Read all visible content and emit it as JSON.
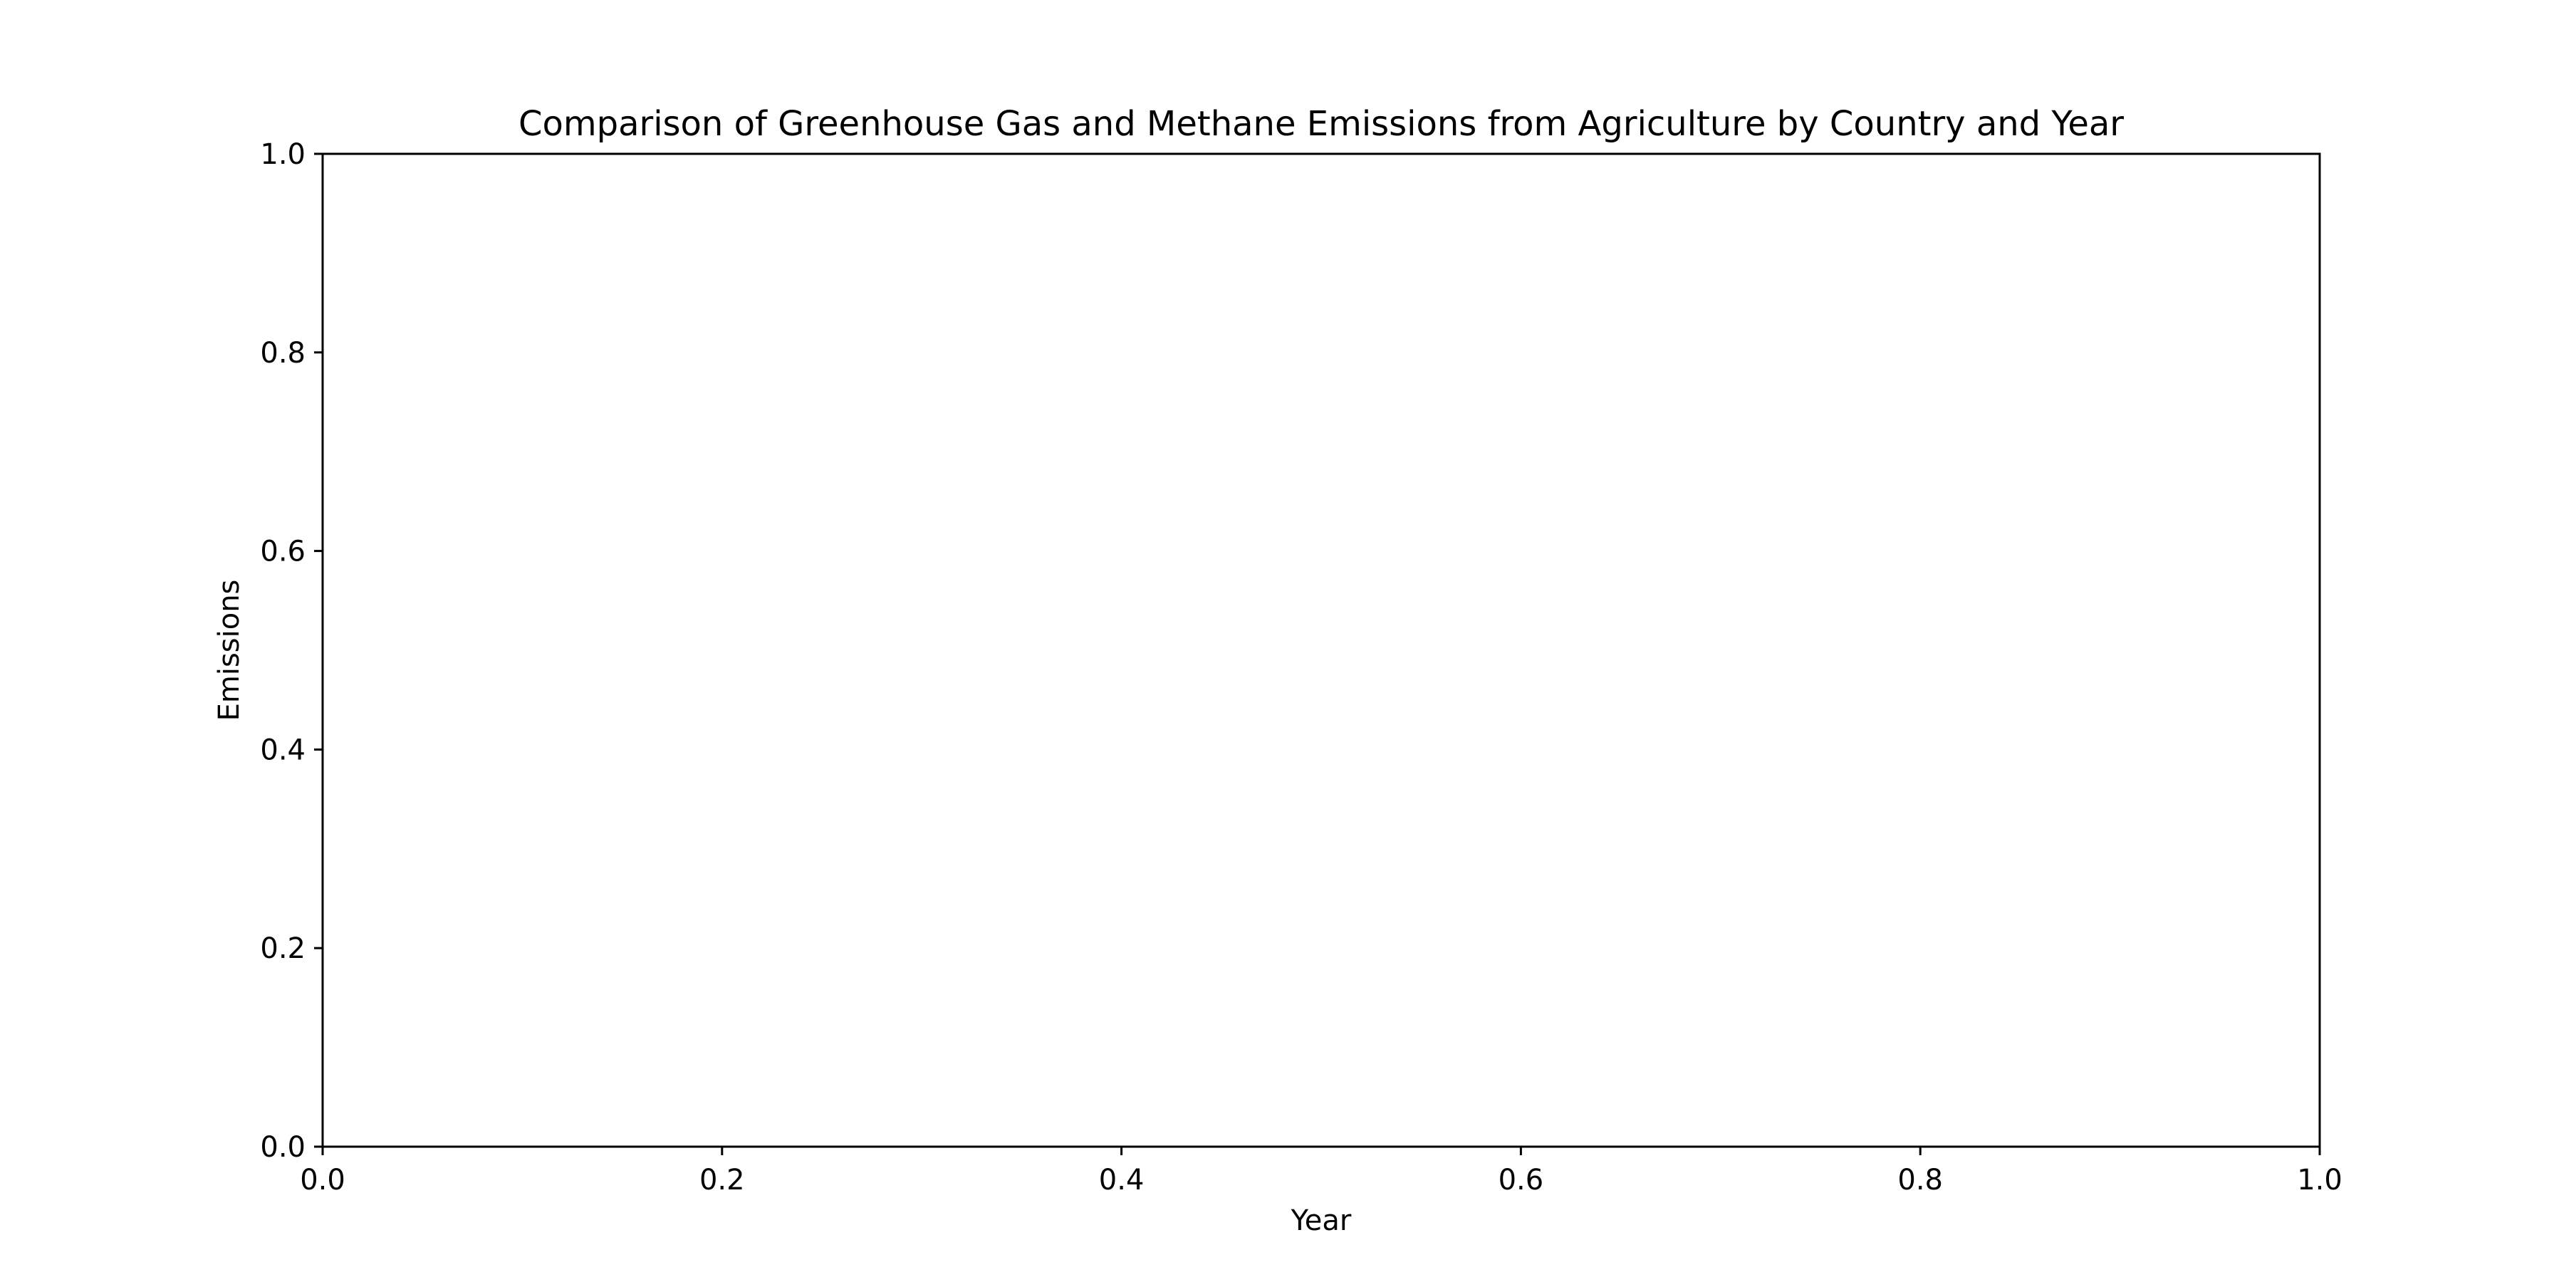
{
  "chart_data": {
    "type": "line",
    "title": "Comparison of Greenhouse Gas and Methane Emissions from Agriculture by Country and Year",
    "xlabel": "Year",
    "ylabel": "Emissions",
    "xlim": [
      0.0,
      1.0
    ],
    "ylim": [
      0.0,
      1.0
    ],
    "x_ticks": [
      "0.0",
      "0.2",
      "0.4",
      "0.6",
      "0.8",
      "1.0"
    ],
    "y_ticks": [
      "0.0",
      "0.2",
      "0.4",
      "0.6",
      "0.8",
      "1.0"
    ],
    "grid": false,
    "series": []
  }
}
